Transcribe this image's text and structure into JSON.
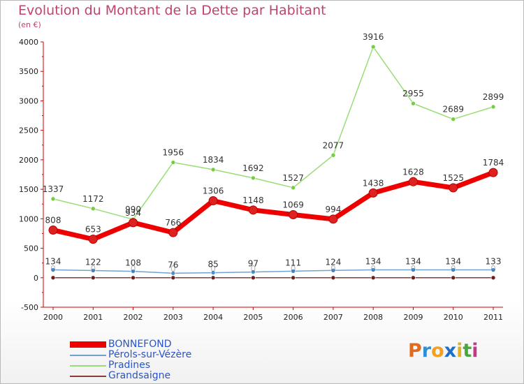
{
  "title": "Evolution du Montant de la Dette par Habitant",
  "subtitle": "(en €)",
  "logo": {
    "text": [
      "P",
      "r",
      "o",
      "x",
      "i",
      "t",
      "i"
    ],
    "colors": [
      "#e06b1f",
      "#2f8ed8",
      "#f2a020",
      "#1f6fc8",
      "#e3b022",
      "#4aa63e",
      "#c03a8a"
    ]
  },
  "chart_data": {
    "type": "line",
    "x": [
      "2000",
      "2001",
      "2002",
      "2003",
      "2004",
      "2005",
      "2006",
      "2007",
      "2008",
      "2009",
      "2010",
      "2011"
    ],
    "ylim": [
      -500,
      4000
    ],
    "yticks": [
      "-500",
      "0",
      "500",
      "1000",
      "1500",
      "2000",
      "2500",
      "3000",
      "3500",
      "4000"
    ],
    "grid": false,
    "legend_position": "bottom-left",
    "series": [
      {
        "name": "BONNEFOND",
        "color": "#ee0000",
        "width": 7,
        "values": [
          808,
          653,
          934,
          766,
          1306,
          1148,
          1069,
          994,
          1438,
          1628,
          1525,
          1784
        ],
        "labels": [
          "808",
          "653",
          "934",
          "766",
          "1306",
          "1148",
          "1069",
          "994",
          "1438",
          "1628",
          "1525",
          "1784"
        ]
      },
      {
        "name": "Pérols-sur-Vézère",
        "color": "#6fa2d0",
        "width": 1.5,
        "values": [
          134,
          122,
          108,
          76,
          85,
          97,
          111,
          124,
          134,
          134,
          134,
          133
        ],
        "labels": [
          "134",
          "122",
          "108",
          "76",
          "85",
          "97",
          "111",
          "124",
          "134",
          "134",
          "134",
          "133"
        ]
      },
      {
        "name": "Pradines",
        "color": "#99dd77",
        "width": 1.5,
        "values": [
          1337,
          1172,
          990,
          1956,
          1834,
          1692,
          1527,
          2077,
          3916,
          2955,
          2689,
          2899
        ],
        "labels": [
          "1337",
          "1172",
          "990",
          "1956",
          "1834",
          "1692",
          "1527",
          "2077",
          "3916",
          "2955",
          "2689",
          "2899"
        ]
      },
      {
        "name": "Grandsaigne",
        "color": "#8b3a3a",
        "width": 1.5,
        "values": [
          0,
          0,
          0,
          0,
          0,
          0,
          0,
          0,
          0,
          0,
          0,
          0
        ],
        "labels": [
          "0",
          "0",
          "0",
          "0",
          "0",
          "0",
          "0",
          "0",
          "0",
          "0",
          "0",
          "0"
        ]
      }
    ]
  }
}
